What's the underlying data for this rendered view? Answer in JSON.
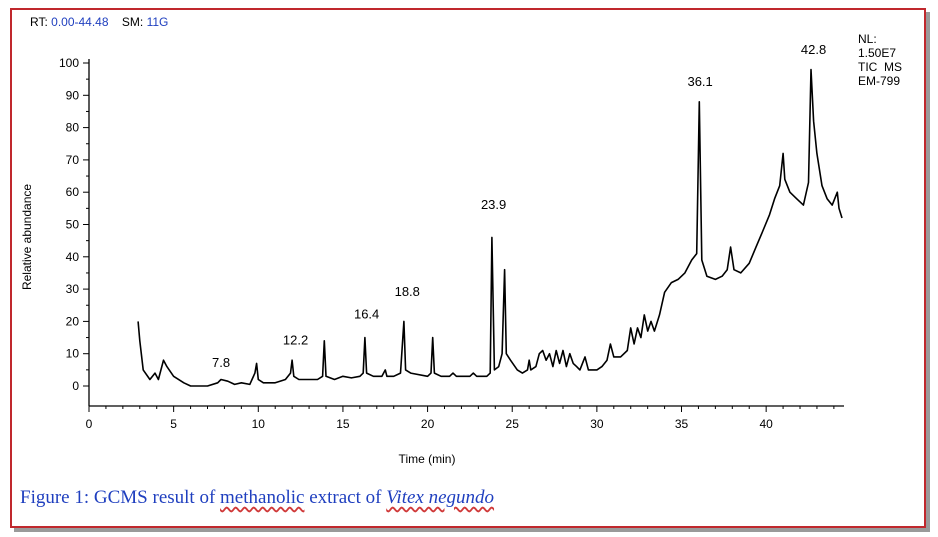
{
  "header": {
    "rt_label": "RT:",
    "rt_value": "0.00-44.48",
    "sm_label": "SM:",
    "sm_value": "11G"
  },
  "nl_box": {
    "line1": "NL:",
    "line2": "1.50E7",
    "line3": "TIC  MS",
    "line4": "EM-799"
  },
  "caption": {
    "prefix": "Figure 1: GCMS result of ",
    "word_methanolic": "methanolic",
    "middle": " extract of ",
    "species": "Vitex negundo"
  },
  "colors": {
    "frame": "#c0282d",
    "caption": "#1f3fbf",
    "line": "#000000"
  },
  "chart_data": {
    "type": "line",
    "xlabel": "Time (min)",
    "ylabel": "Relative abundance",
    "xlim": [
      0,
      44.48
    ],
    "ylim": [
      0,
      100
    ],
    "x_ticks": [
      0,
      5,
      10,
      15,
      20,
      25,
      30,
      35,
      40
    ],
    "y_ticks": [
      0,
      10,
      20,
      30,
      40,
      50,
      60,
      70,
      80,
      90,
      100
    ],
    "peak_labels": [
      {
        "x": 7.8,
        "y": 4,
        "text": "7.8"
      },
      {
        "x": 12.2,
        "y": 11,
        "text": "12.2"
      },
      {
        "x": 16.4,
        "y": 19,
        "text": "16.4"
      },
      {
        "x": 18.8,
        "y": 26,
        "text": "18.8"
      },
      {
        "x": 23.9,
        "y": 53,
        "text": "23.9"
      },
      {
        "x": 36.1,
        "y": 91,
        "text": "36.1"
      },
      {
        "x": 42.8,
        "y": 101,
        "text": "42.8"
      }
    ],
    "series": [
      {
        "points": [
          [
            2.9,
            20
          ],
          [
            3.0,
            14
          ],
          [
            3.2,
            5
          ],
          [
            3.6,
            2
          ],
          [
            3.9,
            4
          ],
          [
            4.1,
            2
          ],
          [
            4.4,
            8
          ],
          [
            4.6,
            6
          ],
          [
            5.0,
            3
          ],
          [
            5.6,
            1
          ],
          [
            6.0,
            0
          ],
          [
            7.0,
            0
          ],
          [
            7.6,
            1
          ],
          [
            7.8,
            2
          ],
          [
            8.2,
            1.5
          ],
          [
            8.6,
            0.5
          ],
          [
            9.0,
            1
          ],
          [
            9.5,
            0.5
          ],
          [
            9.8,
            4
          ],
          [
            9.9,
            7
          ],
          [
            10.0,
            2
          ],
          [
            10.3,
            1
          ],
          [
            11.0,
            1
          ],
          [
            11.6,
            2
          ],
          [
            11.9,
            4
          ],
          [
            12.0,
            8
          ],
          [
            12.1,
            3
          ],
          [
            12.4,
            2
          ],
          [
            13.5,
            2
          ],
          [
            13.8,
            3
          ],
          [
            13.9,
            14
          ],
          [
            14.0,
            3
          ],
          [
            14.5,
            2
          ],
          [
            15.0,
            3
          ],
          [
            15.5,
            2.5
          ],
          [
            16.0,
            3
          ],
          [
            16.2,
            4
          ],
          [
            16.3,
            15
          ],
          [
            16.4,
            4
          ],
          [
            16.8,
            3
          ],
          [
            17.3,
            3
          ],
          [
            17.5,
            5
          ],
          [
            17.6,
            3
          ],
          [
            18.0,
            3
          ],
          [
            18.4,
            4
          ],
          [
            18.6,
            20
          ],
          [
            18.7,
            5
          ],
          [
            19.0,
            4
          ],
          [
            20.0,
            3
          ],
          [
            20.2,
            4
          ],
          [
            20.3,
            15
          ],
          [
            20.4,
            4
          ],
          [
            20.8,
            3
          ],
          [
            21.3,
            3
          ],
          [
            21.5,
            4
          ],
          [
            21.7,
            3
          ],
          [
            22.5,
            3
          ],
          [
            22.7,
            4
          ],
          [
            22.9,
            3
          ],
          [
            23.5,
            3
          ],
          [
            23.7,
            4
          ],
          [
            23.8,
            46
          ],
          [
            23.95,
            5
          ],
          [
            24.2,
            6
          ],
          [
            24.4,
            10
          ],
          [
            24.55,
            36
          ],
          [
            24.65,
            10
          ],
          [
            24.9,
            8
          ],
          [
            25.3,
            5
          ],
          [
            25.6,
            4
          ],
          [
            25.9,
            5
          ],
          [
            26.0,
            8
          ],
          [
            26.1,
            5
          ],
          [
            26.4,
            6
          ],
          [
            26.6,
            10
          ],
          [
            26.8,
            11
          ],
          [
            27.0,
            8
          ],
          [
            27.2,
            10
          ],
          [
            27.4,
            6
          ],
          [
            27.6,
            11
          ],
          [
            27.8,
            7
          ],
          [
            28.0,
            11
          ],
          [
            28.2,
            6
          ],
          [
            28.4,
            10
          ],
          [
            28.6,
            7
          ],
          [
            28.8,
            6
          ],
          [
            29.0,
            5
          ],
          [
            29.3,
            9
          ],
          [
            29.5,
            5
          ],
          [
            30.0,
            5
          ],
          [
            30.3,
            6
          ],
          [
            30.6,
            8
          ],
          [
            30.8,
            13
          ],
          [
            31.0,
            9
          ],
          [
            31.4,
            9
          ],
          [
            31.8,
            11
          ],
          [
            32.0,
            18
          ],
          [
            32.2,
            13
          ],
          [
            32.4,
            18
          ],
          [
            32.6,
            15
          ],
          [
            32.8,
            22
          ],
          [
            33.0,
            17
          ],
          [
            33.2,
            20
          ],
          [
            33.4,
            17
          ],
          [
            33.7,
            22
          ],
          [
            34.0,
            29
          ],
          [
            34.4,
            32
          ],
          [
            34.8,
            33
          ],
          [
            35.2,
            35
          ],
          [
            35.6,
            39
          ],
          [
            35.9,
            41
          ],
          [
            36.05,
            88
          ],
          [
            36.2,
            39
          ],
          [
            36.5,
            34
          ],
          [
            37.0,
            33
          ],
          [
            37.4,
            34
          ],
          [
            37.7,
            36
          ],
          [
            37.9,
            43
          ],
          [
            38.1,
            36
          ],
          [
            38.5,
            35
          ],
          [
            39.0,
            38
          ],
          [
            39.4,
            43
          ],
          [
            39.8,
            48
          ],
          [
            40.2,
            53
          ],
          [
            40.5,
            58
          ],
          [
            40.8,
            62
          ],
          [
            41.0,
            72
          ],
          [
            41.1,
            64
          ],
          [
            41.4,
            60
          ],
          [
            41.8,
            58
          ],
          [
            42.2,
            56
          ],
          [
            42.5,
            63
          ],
          [
            42.65,
            98
          ],
          [
            42.8,
            82
          ],
          [
            43.0,
            72
          ],
          [
            43.3,
            62
          ],
          [
            43.6,
            58
          ],
          [
            43.9,
            56
          ],
          [
            44.2,
            60
          ],
          [
            44.3,
            55
          ],
          [
            44.48,
            52
          ]
        ]
      }
    ]
  }
}
